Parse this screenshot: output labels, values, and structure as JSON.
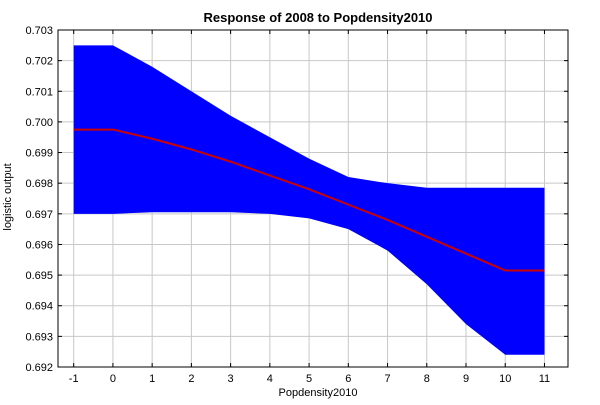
{
  "chart_data": {
    "type": "area",
    "title": "Response of 2008 to Popdensity2010",
    "xlabel": "Popdensity2010",
    "ylabel": "logistic output",
    "xlim": [
      -1.4,
      11.6
    ],
    "ylim": [
      0.692,
      0.703
    ],
    "xticks": [
      -1,
      0,
      1,
      2,
      3,
      4,
      5,
      6,
      7,
      8,
      9,
      10,
      11
    ],
    "yticks": [
      0.692,
      0.693,
      0.694,
      0.695,
      0.696,
      0.697,
      0.698,
      0.699,
      0.7,
      0.701,
      0.702,
      0.703
    ],
    "grid": true,
    "x": [
      -1,
      0,
      1,
      2,
      3,
      4,
      5,
      6,
      7,
      8,
      9,
      10,
      11
    ],
    "series": [
      {
        "role": "mean",
        "color": "#cc0000",
        "values": [
          0.69975,
          0.69975,
          0.69945,
          0.6991,
          0.6987,
          0.69825,
          0.6978,
          0.6973,
          0.6968,
          0.69625,
          0.6957,
          0.69515,
          0.69515
        ]
      }
    ],
    "band": {
      "role": "confidence-interval",
      "color": "#0000ff",
      "upper": [
        0.7025,
        0.7025,
        0.7018,
        0.701,
        0.7002,
        0.6995,
        0.6988,
        0.6982,
        0.698,
        0.69785,
        0.69785,
        0.69785,
        0.69785
      ],
      "lower": [
        0.697,
        0.697,
        0.69705,
        0.69705,
        0.69705,
        0.697,
        0.69685,
        0.6965,
        0.6958,
        0.6947,
        0.6934,
        0.6924,
        0.6924
      ]
    },
    "colors": {
      "band": "#0000ff",
      "line": "#cc0000",
      "grid": "#c8c8c8",
      "axes": "#000000"
    }
  }
}
